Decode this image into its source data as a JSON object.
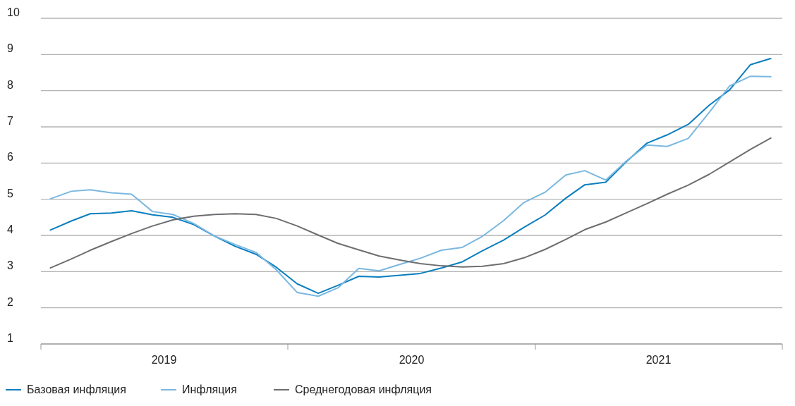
{
  "chart_data": {
    "type": "line",
    "x": [
      "2019-01-15",
      "2019-02-15",
      "2019-03-15",
      "2019-04-15",
      "2019-05-15",
      "2019-06-15",
      "2019-07-15",
      "2019-08-15",
      "2019-09-15",
      "2019-10-15",
      "2019-11-15",
      "2019-12-15",
      "2020-01-15",
      "2020-02-15",
      "2020-03-15",
      "2020-04-15",
      "2020-05-15",
      "2020-06-15",
      "2020-07-15",
      "2020-08-15",
      "2020-09-15",
      "2020-10-15",
      "2020-11-15",
      "2020-12-15",
      "2021-01-15",
      "2021-02-15",
      "2021-03-15",
      "2021-04-15",
      "2021-05-15",
      "2021-06-15",
      "2021-07-15",
      "2021-08-15",
      "2021-09-15",
      "2021-10-15",
      "2021-11-15",
      "2021-12-15"
    ],
    "series": [
      {
        "name": "Базовая инфляция",
        "color": "#0a7ebf",
        "values": [
          4.15,
          4.4,
          4.6,
          4.62,
          4.68,
          4.57,
          4.5,
          4.3,
          3.98,
          3.7,
          3.48,
          3.12,
          2.66,
          2.4,
          2.62,
          2.87,
          2.85,
          2.9,
          2.95,
          3.1,
          3.27,
          3.58,
          3.87,
          4.22,
          4.56,
          5.03,
          5.4,
          5.47,
          6.03,
          6.55,
          6.78,
          7.07,
          7.6,
          8.02,
          8.72,
          8.89
        ]
      },
      {
        "name": "Инфляция",
        "color": "#7ab8e0",
        "values": [
          5.01,
          5.22,
          5.26,
          5.18,
          5.14,
          4.66,
          4.58,
          4.33,
          3.98,
          3.75,
          3.53,
          3.05,
          2.42,
          2.32,
          2.55,
          3.09,
          3.02,
          3.2,
          3.37,
          3.59,
          3.67,
          3.98,
          4.41,
          4.91,
          5.19,
          5.67,
          5.79,
          5.53,
          6.05,
          6.5,
          6.46,
          6.68,
          7.4,
          8.13,
          8.4,
          8.39
        ]
      },
      {
        "name": "Среднегодовая инфляция",
        "color": "#6d6e71",
        "values": [
          3.1,
          3.35,
          3.59,
          3.83,
          4.05,
          4.26,
          4.43,
          4.53,
          4.58,
          4.6,
          4.58,
          4.47,
          4.26,
          4.01,
          3.78,
          3.6,
          3.43,
          3.32,
          3.22,
          3.16,
          3.13,
          3.15,
          3.22,
          3.38,
          3.61,
          3.89,
          4.16,
          4.37,
          4.62,
          4.88,
          5.14,
          5.39,
          5.69,
          6.03,
          6.38,
          6.69
        ]
      }
    ],
    "xlim": [
      "2019-01-01",
      "2022-01-01"
    ],
    "xticks": [
      {
        "value": "2019-01-01",
        "label": null
      },
      {
        "value": "2019-07-02",
        "label": "2019"
      },
      {
        "value": "2020-01-01",
        "label": null
      },
      {
        "value": "2020-07-02",
        "label": "2020"
      },
      {
        "value": "2021-01-01",
        "label": null
      },
      {
        "value": "2021-07-02",
        "label": "2021"
      },
      {
        "value": "2022-01-01",
        "label": null
      }
    ],
    "ylim": [
      1,
      10
    ],
    "yticks": [
      1,
      2,
      3,
      4,
      5,
      6,
      7,
      8,
      9,
      10
    ],
    "grid": "y",
    "legend": "bottom",
    "marker": "none",
    "line_style": "solid"
  }
}
